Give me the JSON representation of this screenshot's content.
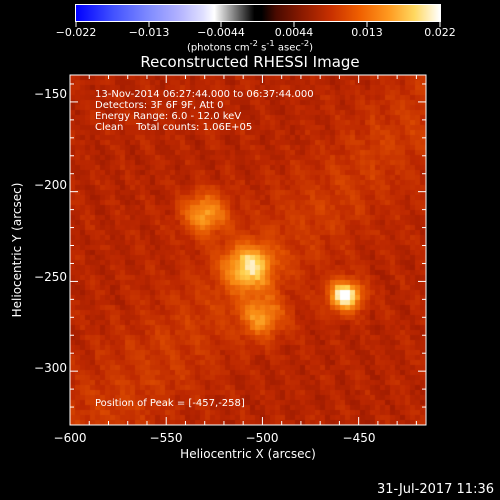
{
  "colorbar": {
    "ticks": [
      "−0.022",
      "−0.013",
      "−0.0044",
      "0.0044",
      "0.013",
      "0.022"
    ],
    "units_pre": "(photons cm",
    "units_sup1": "-2",
    "units_mid": " s",
    "units_sup2": "-1",
    "units_post": " asec",
    "units_sup3": "-2",
    "units_end": ")"
  },
  "chart_data": {
    "type": "heatmap",
    "title": "Reconstructed RHESSI Image",
    "xlabel": "Heliocentric X (arcsec)",
    "ylabel": "Heliocentric Y (arcsec)",
    "xlim": [
      -600,
      -415
    ],
    "ylim": [
      -330,
      -135
    ],
    "x_ticks": [
      "−600",
      "−550",
      "−500",
      "−450"
    ],
    "x_tick_values": [
      -600,
      -550,
      -500,
      -450
    ],
    "y_ticks": [
      "−150",
      "−200",
      "−250",
      "−300"
    ],
    "y_tick_values": [
      -150,
      -200,
      -250,
      -300
    ],
    "colormap": "red-temperature",
    "color_range": [
      -0.022,
      0.022
    ],
    "sources": [
      {
        "x": -457,
        "y": -258,
        "sigma": 6,
        "peak": 1.0
      },
      {
        "x": -507,
        "y": -242,
        "sigma": 9,
        "peak": 0.72
      },
      {
        "x": -530,
        "y": -212,
        "sigma": 8,
        "peak": 0.62
      },
      {
        "x": -500,
        "y": -270,
        "sigma": 8,
        "peak": 0.5
      }
    ],
    "annotations": {
      "time": "13-Nov-2014 06:27:44.000 to 06:37:44.000",
      "detectors": "Detectors: 3F 6F 9F, Att 0",
      "energy": "Energy Range: 6.0 - 12.0 keV",
      "clean": "Clean    Total counts: 1.06E+05",
      "peak": "Position of Peak = [-457,-258]"
    }
  },
  "footer_date": "31-Jul-2017 11:36"
}
